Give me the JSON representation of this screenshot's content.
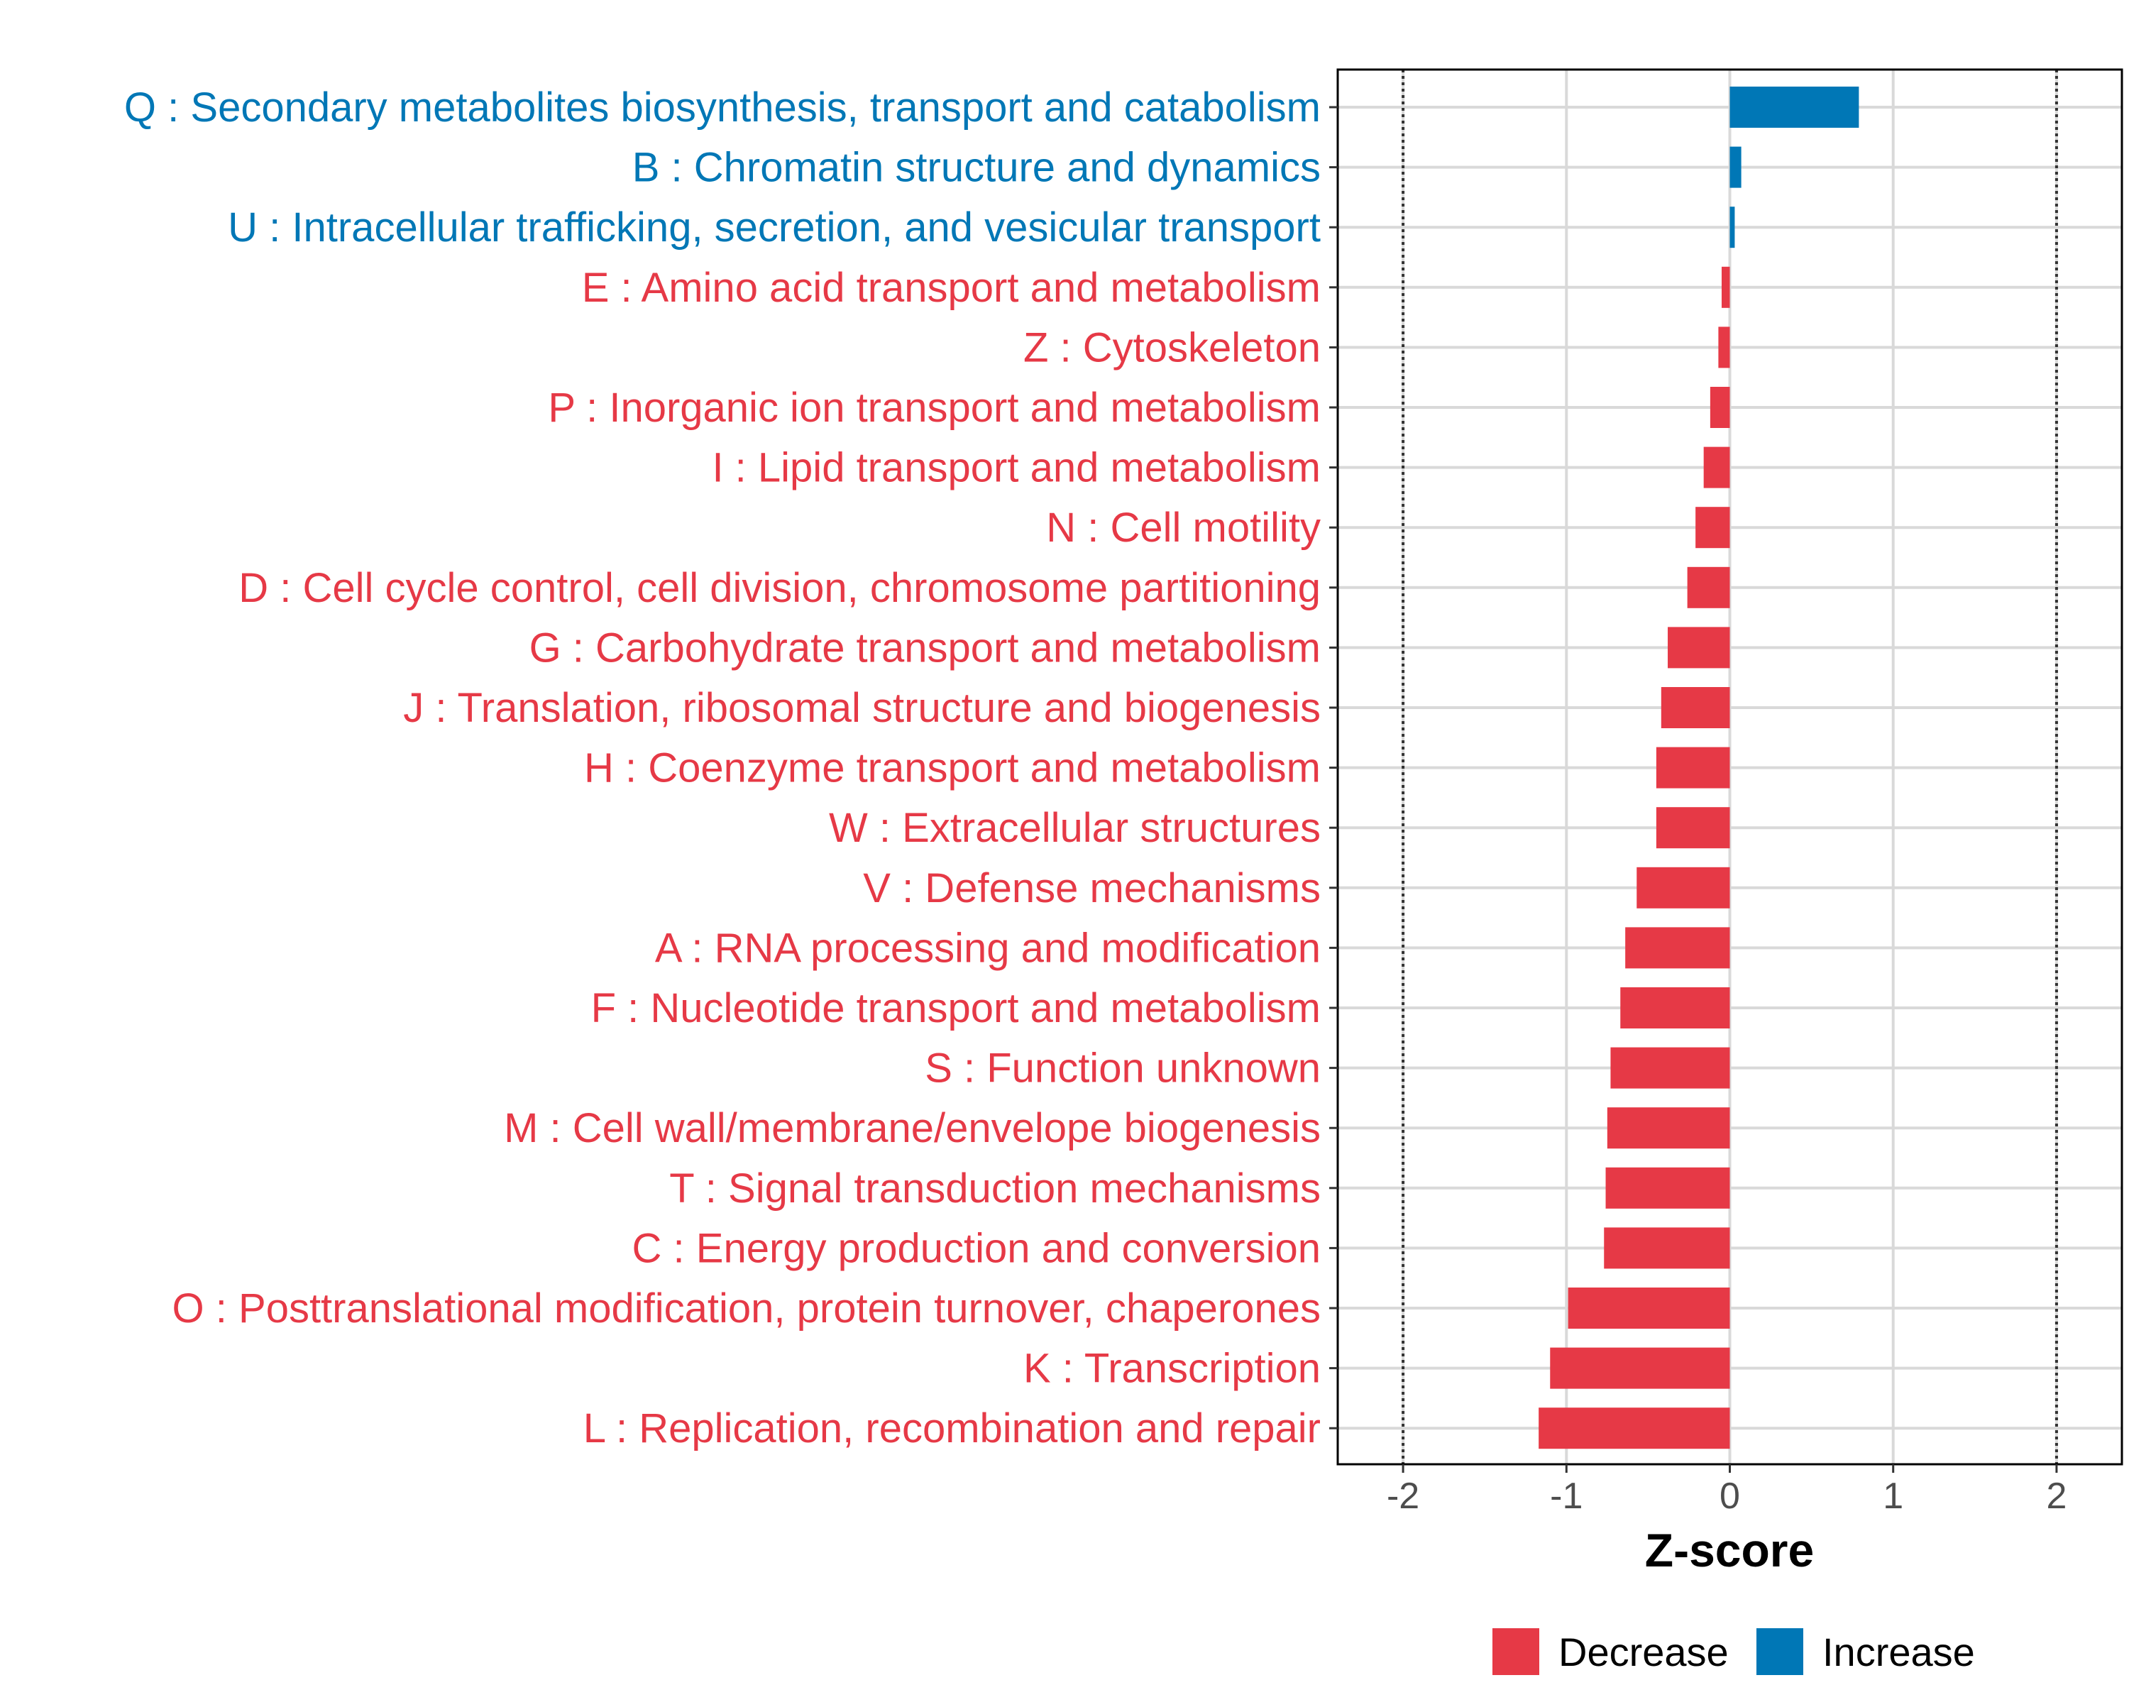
{
  "chart_data": {
    "type": "bar",
    "orientation": "horizontal",
    "xlabel": "Z-score",
    "xlim": [
      -2.4,
      2.4
    ],
    "xticks": [
      -2,
      -1,
      0,
      1,
      2
    ],
    "xtick_labels": [
      "-2",
      "-1",
      "0",
      "1",
      "2"
    ],
    "reference_lines": [
      -2,
      2
    ],
    "grid": true,
    "legend": {
      "position": "bottom",
      "entries": [
        {
          "name": "Decrease",
          "color": "#E63946"
        },
        {
          "name": "Increase",
          "color": "#0077B6"
        }
      ]
    },
    "categories": [
      "Q : Secondary metabolites biosynthesis, transport and catabolism",
      "B : Chromatin structure and dynamics",
      "U : Intracellular trafficking, secretion, and vesicular transport",
      "E : Amino acid transport and metabolism",
      "Z : Cytoskeleton",
      "P : Inorganic ion transport and metabolism",
      "I : Lipid transport and metabolism",
      "N : Cell motility",
      "D : Cell cycle control, cell division, chromosome partitioning",
      "G : Carbohydrate transport and metabolism",
      "J : Translation, ribosomal structure and biogenesis",
      "H : Coenzyme transport and metabolism",
      "W : Extracellular structures",
      "V : Defense mechanisms",
      "A : RNA processing and modification",
      "F : Nucleotide transport and metabolism",
      "S : Function unknown",
      "M : Cell wall/membrane/envelope biogenesis",
      "T : Signal transduction mechanisms",
      "C : Energy production and conversion",
      "O : Posttranslational modification, protein turnover, chaperones",
      "K : Transcription",
      "L : Replication, recombination and repair"
    ],
    "values": [
      0.79,
      0.07,
      0.03,
      -0.05,
      -0.07,
      -0.12,
      -0.16,
      -0.21,
      -0.26,
      -0.38,
      -0.42,
      -0.45,
      -0.45,
      -0.57,
      -0.64,
      -0.67,
      -0.73,
      -0.75,
      -0.76,
      -0.77,
      -0.99,
      -1.1,
      -1.17
    ],
    "groups": [
      "Increase",
      "Increase",
      "Increase",
      "Decrease",
      "Decrease",
      "Decrease",
      "Decrease",
      "Decrease",
      "Decrease",
      "Decrease",
      "Decrease",
      "Decrease",
      "Decrease",
      "Decrease",
      "Decrease",
      "Decrease",
      "Decrease",
      "Decrease",
      "Decrease",
      "Decrease",
      "Decrease",
      "Decrease",
      "Decrease"
    ]
  }
}
